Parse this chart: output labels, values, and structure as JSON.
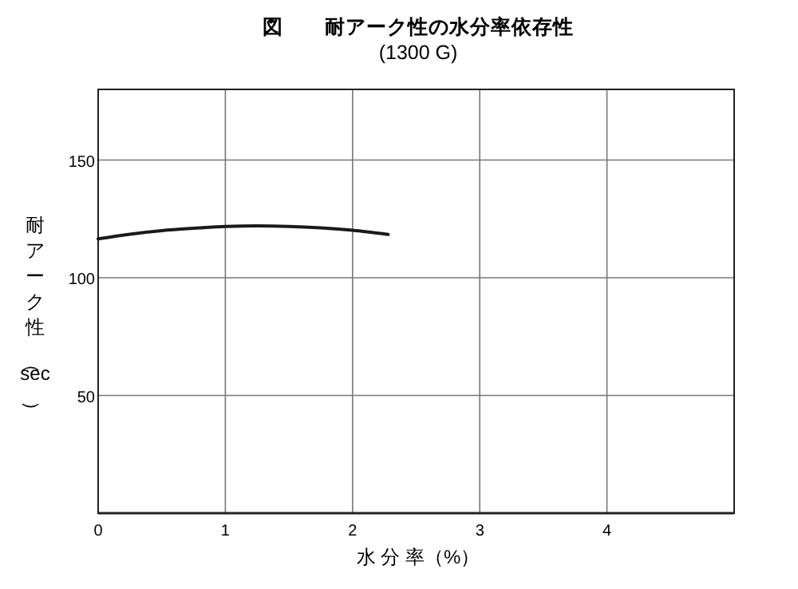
{
  "chart_data": {
    "type": "line",
    "title": "図　　耐アーク性の水分率依存性",
    "subtitle": "(1300 G)",
    "xlabel": "水 分 率（%）",
    "ylabel": "耐アーク性（sec）",
    "series": [
      {
        "color": "#1a1a1a",
        "x": [
          0,
          0.25,
          0.5,
          0.75,
          1,
          1.25,
          1.5,
          1.75,
          2,
          2.28
        ],
        "values": [
          116.5,
          118.5,
          120,
          121,
          121.8,
          122,
          121.8,
          121.2,
          120.2,
          118.4
        ]
      }
    ],
    "xlim": [
      0,
      5
    ],
    "xticks": [
      0,
      1,
      2,
      3,
      4
    ],
    "ylim": [
      0,
      180
    ],
    "yticks": [
      50,
      100,
      150
    ],
    "grid": true,
    "marker": "none",
    "line_style": "solid"
  }
}
